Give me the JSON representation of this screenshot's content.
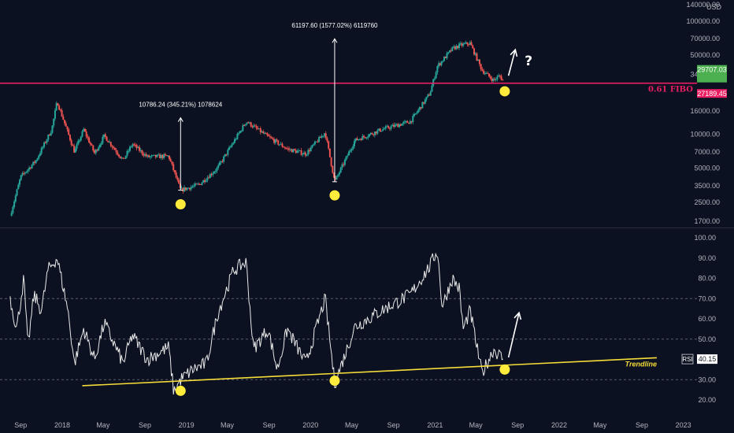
{
  "chart_data": [
    {
      "type": "candlestick",
      "scale": "log",
      "currency": "USD",
      "grid": false,
      "y_ticks": [
        1700,
        2500,
        3500,
        5000,
        7000,
        10000,
        16000,
        34000,
        50000,
        70000,
        100000,
        140000
      ],
      "y_tick_labels": [
        "1700.00",
        "2500.00",
        "3500.00",
        "5000.00",
        "7000.00",
        "10000.00",
        "16000.00",
        "34000.00",
        "50000.00",
        "70000.00",
        "100000.00",
        "140000.00"
      ],
      "ylim": [
        1500,
        160000
      ],
      "x_ticks": [
        "Sep",
        "2018",
        "May",
        "Sep",
        "2019",
        "May",
        "Sep",
        "2020",
        "May",
        "Sep",
        "2021",
        "May",
        "Sep",
        "2022",
        "May",
        "Sep",
        "2023"
      ],
      "price_path": [
        {
          "t": "2017-08-01",
          "v": 1900
        },
        {
          "t": "2017-09-01",
          "v": 4200
        },
        {
          "t": "2017-10-15",
          "v": 5800
        },
        {
          "t": "2017-12-01",
          "v": 11000
        },
        {
          "t": "2017-12-17",
          "v": 19500
        },
        {
          "t": "2018-02-06",
          "v": 7000
        },
        {
          "t": "2018-03-05",
          "v": 11000
        },
        {
          "t": "2018-04-06",
          "v": 6800
        },
        {
          "t": "2018-05-05",
          "v": 9700
        },
        {
          "t": "2018-06-29",
          "v": 5900
        },
        {
          "t": "2018-07-26",
          "v": 8200
        },
        {
          "t": "2018-09-08",
          "v": 6300
        },
        {
          "t": "2018-11-10",
          "v": 6400
        },
        {
          "t": "2018-12-15",
          "v": 3200
        },
        {
          "t": "2019-02-08",
          "v": 3600
        },
        {
          "t": "2019-04-02",
          "v": 5000
        },
        {
          "t": "2019-06-26",
          "v": 13000
        },
        {
          "t": "2019-08-29",
          "v": 9500
        },
        {
          "t": "2019-10-25",
          "v": 7400
        },
        {
          "t": "2019-12-18",
          "v": 6700
        },
        {
          "t": "2020-02-13",
          "v": 10400
        },
        {
          "t": "2020-03-12",
          "v": 3800
        },
        {
          "t": "2020-05-10",
          "v": 8800
        },
        {
          "t": "2020-07-27",
          "v": 11000
        },
        {
          "t": "2020-10-21",
          "v": 13000
        },
        {
          "t": "2020-12-17",
          "v": 23000
        },
        {
          "t": "2021-01-08",
          "v": 40000
        },
        {
          "t": "2021-02-21",
          "v": 57000
        },
        {
          "t": "2021-03-13",
          "v": 61000
        },
        {
          "t": "2021-04-14",
          "v": 64000
        },
        {
          "t": "2021-05-19",
          "v": 37000
        },
        {
          "t": "2021-06-22",
          "v": 30000
        },
        {
          "t": "2021-07-10",
          "v": 33000
        },
        {
          "t": "2021-07-20",
          "v": 29700
        }
      ],
      "price_labels": [
        {
          "text": "29707.03",
          "value": 29707.03,
          "color": "#4caf50"
        },
        {
          "text": "27189.45",
          "value": 27189.45,
          "color": "#e91e63"
        }
      ],
      "fibo_line": {
        "label": "0.61 FIBO",
        "value": 28300,
        "color": "#e91e63"
      },
      "annotations": [
        {
          "text": "10786.24 (345.21%) 1078624",
          "from": {
            "t": "2018-12-15",
            "v": 3200
          },
          "to": {
            "t": "2018-12-15",
            "v": 14000
          }
        },
        {
          "text": "61197.60 (1577.02%) 6119760",
          "from": {
            "t": "2020-03-12",
            "v": 3800
          },
          "to": {
            "t": "2020-03-12",
            "v": 70000
          }
        }
      ],
      "markers": [
        {
          "t": "2018-12-15",
          "v": 2400
        },
        {
          "t": "2020-03-12",
          "v": 2880
        },
        {
          "t": "2021-07-25",
          "v": 24000
        }
      ],
      "arrow": {
        "from": {
          "t": "2021-08-05",
          "v": 33000
        },
        "to": {
          "t": "2021-08-25",
          "v": 56000
        }
      },
      "question_mark": "?"
    },
    {
      "type": "line",
      "ylim": [
        15,
        103
      ],
      "y_ticks": [
        20,
        30,
        40,
        50,
        60,
        70,
        80,
        90,
        100
      ],
      "y_tick_labels": [
        "20.00",
        "30.00",
        "40.00",
        "50.00",
        "60.00",
        "70.00",
        "80.00",
        "90.00",
        "100.00"
      ],
      "dashed_levels": [
        30,
        50,
        70
      ],
      "rsi_path": [
        {
          "t": "2017-08-01",
          "v": 70
        },
        {
          "t": "2017-08-20",
          "v": 55
        },
        {
          "t": "2017-09-10",
          "v": 80
        },
        {
          "t": "2017-09-22",
          "v": 46
        },
        {
          "t": "2017-10-10",
          "v": 72
        },
        {
          "t": "2017-11-01",
          "v": 64
        },
        {
          "t": "2017-11-20",
          "v": 84
        },
        {
          "t": "2017-12-17",
          "v": 90
        },
        {
          "t": "2018-01-17",
          "v": 65
        },
        {
          "t": "2018-02-06",
          "v": 38
        },
        {
          "t": "2018-03-05",
          "v": 55
        },
        {
          "t": "2018-04-06",
          "v": 40
        },
        {
          "t": "2018-05-05",
          "v": 58
        },
        {
          "t": "2018-06-29",
          "v": 38
        },
        {
          "t": "2018-07-26",
          "v": 52
        },
        {
          "t": "2018-09-08",
          "v": 40
        },
        {
          "t": "2018-11-10",
          "v": 46
        },
        {
          "t": "2018-11-25",
          "v": 24
        },
        {
          "t": "2018-12-15",
          "v": 30
        },
        {
          "t": "2019-01-20",
          "v": 35
        },
        {
          "t": "2019-03-01",
          "v": 38
        },
        {
          "t": "2019-04-02",
          "v": 62
        },
        {
          "t": "2019-05-20",
          "v": 84
        },
        {
          "t": "2019-06-26",
          "v": 88
        },
        {
          "t": "2019-07-17",
          "v": 45
        },
        {
          "t": "2019-08-29",
          "v": 55
        },
        {
          "t": "2019-09-25",
          "v": 35
        },
        {
          "t": "2019-10-25",
          "v": 55
        },
        {
          "t": "2019-12-18",
          "v": 38
        },
        {
          "t": "2020-02-13",
          "v": 70
        },
        {
          "t": "2020-03-12",
          "v": 28
        },
        {
          "t": "2020-05-10",
          "v": 56
        },
        {
          "t": "2020-07-27",
          "v": 64
        },
        {
          "t": "2020-10-21",
          "v": 72
        },
        {
          "t": "2020-12-17",
          "v": 86
        },
        {
          "t": "2021-01-08",
          "v": 94
        },
        {
          "t": "2021-01-22",
          "v": 66
        },
        {
          "t": "2021-02-21",
          "v": 80
        },
        {
          "t": "2021-03-13",
          "v": 75
        },
        {
          "t": "2021-03-25",
          "v": 55
        },
        {
          "t": "2021-04-14",
          "v": 64
        },
        {
          "t": "2021-05-19",
          "v": 33
        },
        {
          "t": "2021-06-22",
          "v": 45
        },
        {
          "t": "2021-07-10",
          "v": 42
        },
        {
          "t": "2021-07-20",
          "v": 40.15
        }
      ],
      "rsi_label": "RSI",
      "rsi_value": "40.15",
      "trendline": {
        "label": "Trendline",
        "from": {
          "t": "2018-03-01",
          "v": 27
        },
        "to": {
          "t": "2022-10-15",
          "v": 40.8
        },
        "color": "#f5dc38"
      },
      "markers": [
        {
          "t": "2018-12-15",
          "v": 24.5
        },
        {
          "t": "2020-03-12",
          "v": 29.5
        },
        {
          "t": "2021-07-25",
          "v": 35
        }
      ],
      "arrow": {
        "from": {
          "t": "2021-08-05",
          "v": 41
        },
        "to": {
          "t": "2021-09-05",
          "v": 63
        }
      }
    }
  ]
}
